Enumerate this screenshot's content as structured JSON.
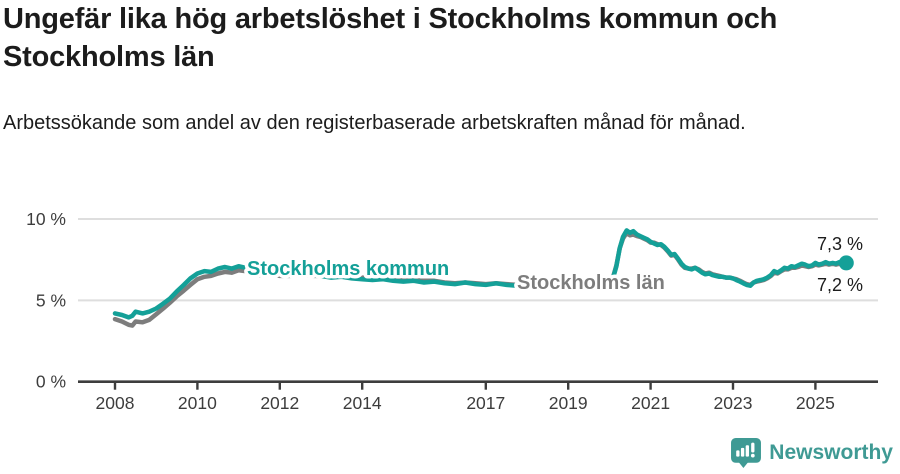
{
  "header": {
    "title": "Ungefär lika hög arbetslöshet i Stockholms kommun och Stockholms län",
    "subtitle": "Arbetssökande som andel av den registerbaserade arbetskraften månad för månad."
  },
  "footer": {
    "brand": "Newsworthy"
  },
  "colors": {
    "kommun": "#14a098",
    "lan": "#7d7d7d",
    "brand_teal": "#3f9a94",
    "text": "#1c1c1c",
    "axis": "#3d3d3d",
    "grid": "#dedede"
  },
  "chart_data": {
    "type": "line",
    "title": "Ungefär lika hög arbetslöshet i Stockholms kommun och Stockholms län",
    "subtitle": "Arbetssökande som andel av den registerbaserade arbetskraften månad för månad.",
    "xlabel": "",
    "ylabel": "",
    "unit": "%",
    "grid": "horizontal",
    "legend": "inline-labels",
    "ylim": [
      0,
      10.8
    ],
    "xlim": [
      2007.1,
      2026.6
    ],
    "y_ticks": [
      {
        "value": 0,
        "label": "0 %"
      },
      {
        "value": 5,
        "label": "5 %"
      },
      {
        "value": 10,
        "label": "10 %"
      }
    ],
    "x_ticks": [
      {
        "value": 2008,
        "label": "2008"
      },
      {
        "value": 2010,
        "label": "2010"
      },
      {
        "value": 2012,
        "label": "2012"
      },
      {
        "value": 2014,
        "label": "2014"
      },
      {
        "value": 2017,
        "label": "2017"
      },
      {
        "value": 2019,
        "label": "2019"
      },
      {
        "value": 2021,
        "label": "2021"
      },
      {
        "value": 2023,
        "label": "2023"
      },
      {
        "value": 2025,
        "label": "2025"
      }
    ],
    "x": [
      2008.0,
      2008.17,
      2008.33,
      2008.42,
      2008.5,
      2008.67,
      2008.83,
      2009.0,
      2009.17,
      2009.33,
      2009.5,
      2009.67,
      2009.83,
      2010.0,
      2010.17,
      2010.33,
      2010.5,
      2010.67,
      2010.83,
      2011.0,
      2011.17,
      2011.33,
      2011.5,
      2011.67,
      2011.83,
      2012.0,
      2012.25,
      2012.5,
      2012.75,
      2013.0,
      2013.25,
      2013.5,
      2013.75,
      2014.0,
      2014.25,
      2014.5,
      2014.75,
      2015.0,
      2015.25,
      2015.5,
      2015.75,
      2016.0,
      2016.25,
      2016.5,
      2016.75,
      2017.0,
      2017.25,
      2017.5,
      2017.75,
      2018.0,
      2018.25,
      2018.5,
      2018.75,
      2019.0,
      2019.25,
      2019.5,
      2019.75,
      2020.0,
      2020.08,
      2020.17,
      2020.25,
      2020.33,
      2020.42,
      2020.5,
      2020.58,
      2020.67,
      2020.75,
      2020.83,
      2020.92,
      2021.0,
      2021.08,
      2021.17,
      2021.25,
      2021.33,
      2021.42,
      2021.5,
      2021.58,
      2021.67,
      2021.75,
      2021.83,
      2021.92,
      2022.0,
      2022.08,
      2022.17,
      2022.25,
      2022.33,
      2022.42,
      2022.5,
      2022.58,
      2022.67,
      2022.75,
      2022.83,
      2022.92,
      2023.0,
      2023.08,
      2023.17,
      2023.25,
      2023.33,
      2023.42,
      2023.5,
      2023.58,
      2023.67,
      2023.75,
      2023.83,
      2023.92,
      2024.0,
      2024.08,
      2024.17,
      2024.25,
      2024.33,
      2024.42,
      2024.5,
      2024.58,
      2024.67,
      2024.75,
      2024.83,
      2024.92,
      2025.0,
      2025.08,
      2025.17,
      2025.25,
      2025.33,
      2025.42,
      2025.5,
      2025.58,
      2025.67,
      2025.75
    ],
    "series": [
      {
        "name": "Stockholms kommun",
        "color": "#14a098",
        "end_label": "7,3 %",
        "end_value": 7.3,
        "end_marker": true,
        "values": [
          4.2,
          4.1,
          3.95,
          4.05,
          4.3,
          4.2,
          4.3,
          4.5,
          4.8,
          5.1,
          5.55,
          5.95,
          6.35,
          6.65,
          6.8,
          6.75,
          6.95,
          7.05,
          6.95,
          7.1,
          7.0,
          6.9,
          6.75,
          6.9,
          6.8,
          6.7,
          6.6,
          6.65,
          6.55,
          6.5,
          6.4,
          6.45,
          6.35,
          6.3,
          6.25,
          6.3,
          6.2,
          6.15,
          6.2,
          6.1,
          6.15,
          6.05,
          6.0,
          6.1,
          6.0,
          5.95,
          6.05,
          5.95,
          5.9,
          5.85,
          5.8,
          5.75,
          5.75,
          5.8,
          5.85,
          5.9,
          6.0,
          6.15,
          6.3,
          7.1,
          8.2,
          8.9,
          9.3,
          9.15,
          9.25,
          9.05,
          8.95,
          8.85,
          8.75,
          8.6,
          8.5,
          8.4,
          8.45,
          8.3,
          8.05,
          7.8,
          7.85,
          7.55,
          7.25,
          7.05,
          6.95,
          6.9,
          7.0,
          6.85,
          6.7,
          6.6,
          6.65,
          6.55,
          6.5,
          6.45,
          6.45,
          6.4,
          6.4,
          6.35,
          6.25,
          6.15,
          6.05,
          5.95,
          5.9,
          6.1,
          6.2,
          6.25,
          6.3,
          6.4,
          6.55,
          6.8,
          6.7,
          6.85,
          7.0,
          6.95,
          7.1,
          7.05,
          7.15,
          7.25,
          7.2,
          7.1,
          7.15,
          7.3,
          7.2,
          7.25,
          7.35,
          7.25,
          7.3,
          7.25,
          7.35,
          7.3,
          7.3
        ]
      },
      {
        "name": "Stockholms län",
        "color": "#7d7d7d",
        "end_label": "7,2 %",
        "end_value": 7.2,
        "end_marker": false,
        "values": [
          3.85,
          3.7,
          3.5,
          3.45,
          3.7,
          3.65,
          3.8,
          4.15,
          4.5,
          4.85,
          5.25,
          5.6,
          5.95,
          6.3,
          6.45,
          6.5,
          6.65,
          6.75,
          6.7,
          6.85,
          6.8,
          6.7,
          6.55,
          6.7,
          6.6,
          6.5,
          6.5,
          6.55,
          6.5,
          6.5,
          6.45,
          6.55,
          6.45,
          6.4,
          6.35,
          6.35,
          6.3,
          6.25,
          6.3,
          6.2,
          6.2,
          6.1,
          6.05,
          6.1,
          6.05,
          6.0,
          6.05,
          6.0,
          5.95,
          5.9,
          5.85,
          5.8,
          5.8,
          5.85,
          5.9,
          5.95,
          6.05,
          6.2,
          6.35,
          7.15,
          8.2,
          8.8,
          9.15,
          9.0,
          9.05,
          8.95,
          8.9,
          8.8,
          8.7,
          8.55,
          8.55,
          8.45,
          8.4,
          8.25,
          8.0,
          7.75,
          7.8,
          7.5,
          7.2,
          7.0,
          6.95,
          6.95,
          7.0,
          6.9,
          6.75,
          6.65,
          6.7,
          6.6,
          6.55,
          6.5,
          6.45,
          6.4,
          6.4,
          6.35,
          6.3,
          6.2,
          6.1,
          6.0,
          5.95,
          6.1,
          6.15,
          6.2,
          6.25,
          6.35,
          6.5,
          6.7,
          6.65,
          6.8,
          6.9,
          6.9,
          7.0,
          7.0,
          7.05,
          7.15,
          7.1,
          7.05,
          7.1,
          7.2,
          7.15,
          7.2,
          7.25,
          7.2,
          7.25,
          7.2,
          7.25,
          7.2,
          7.2
        ]
      }
    ]
  }
}
